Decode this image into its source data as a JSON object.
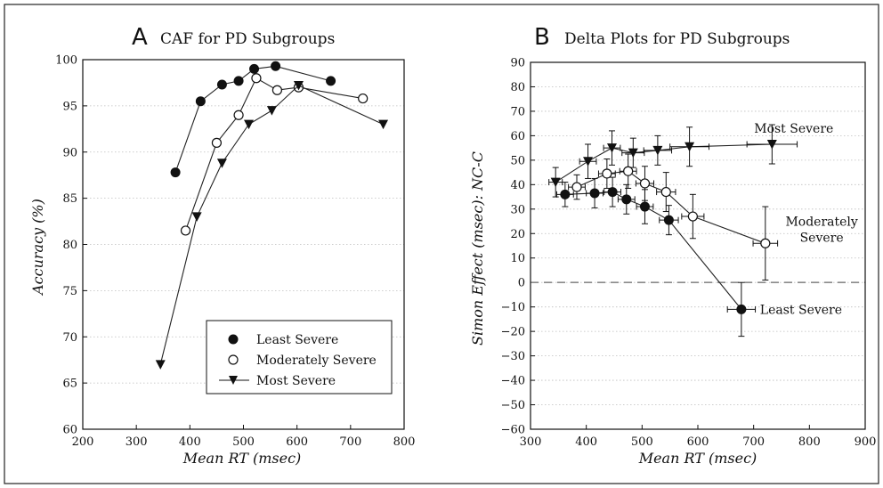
{
  "chart_data": [
    {
      "type": "line",
      "panel_letter": "A",
      "title": "CAF for PD Subgroups",
      "xlabel": "Mean RT (msec)",
      "ylabel": "Accuracy (%)",
      "xlim": [
        200,
        800
      ],
      "ylim": [
        60,
        100
      ],
      "xticks": [
        "200",
        "300",
        "400",
        "500",
        "600",
        "700",
        "800"
      ],
      "yticks": [
        "60",
        "65",
        "70",
        "75",
        "80",
        "85",
        "90",
        "95",
        "100"
      ],
      "grid": "horizontal dotted",
      "legend_placement": "bottom-right",
      "series": [
        {
          "name": "Least Severe",
          "marker": "filled-circle",
          "x": [
            373,
            420,
            460,
            491,
            520,
            560,
            663
          ],
          "y": [
            87.8,
            95.5,
            97.3,
            97.7,
            99.0,
            99.3,
            97.7
          ]
        },
        {
          "name": "Moderately Severe",
          "marker": "open-circle",
          "x": [
            392,
            450,
            491,
            524,
            563,
            603,
            723
          ],
          "y": [
            81.5,
            91.0,
            94.0,
            98.0,
            96.7,
            97.0,
            95.8
          ]
        },
        {
          "name": "Most Severe",
          "marker": "filled-triangle-down",
          "x": [
            345,
            413,
            460,
            510,
            553,
            603,
            761
          ],
          "y": [
            67.0,
            83.0,
            88.8,
            93.0,
            94.5,
            97.2,
            93.0
          ]
        }
      ]
    },
    {
      "type": "line",
      "panel_letter": "B",
      "title": "Delta Plots for PD Subgroups",
      "xlabel": "Mean RT (msec)",
      "ylabel": "Simon Effect (msec): NC-C",
      "xlim": [
        300,
        900
      ],
      "ylim": [
        -60,
        90
      ],
      "xticks": [
        "300",
        "400",
        "500",
        "600",
        "700",
        "800",
        "900"
      ],
      "yticks": [
        "90",
        "80",
        "70",
        "60",
        "50",
        "40",
        "30",
        "20",
        "10",
        "0",
        "−10",
        "−20",
        "−30",
        "−40",
        "−50",
        "−60"
      ],
      "grid": "horizontal dotted",
      "reference_line_y": 0,
      "series": [
        {
          "name": "Least Severe",
          "marker": "filled-circle",
          "x": [
            362,
            415,
            447,
            472,
            505,
            548,
            678
          ],
          "y": [
            36,
            36.5,
            37,
            34,
            31,
            25.5,
            -11
          ],
          "yerr": [
            5,
            6,
            6,
            6,
            7,
            6,
            11
          ],
          "xerr": [
            15,
            15,
            15,
            15,
            15,
            17,
            25
          ]
        },
        {
          "name": "Moderately Severe",
          "marker": "open-circle",
          "x": [
            383,
            437,
            475,
            505,
            543,
            591,
            721
          ],
          "y": [
            39,
            44.5,
            45.5,
            40.5,
            37,
            27,
            16
          ],
          "yerr": [
            5,
            6,
            7,
            7,
            8,
            9,
            15
          ],
          "xerr": [
            15,
            15,
            15,
            16,
            17,
            20,
            22
          ]
        },
        {
          "name": "Most Severe",
          "marker": "filled-triangle-down",
          "x": [
            345,
            403,
            446,
            484,
            528,
            585,
            733
          ],
          "y": [
            41,
            49.5,
            55,
            53,
            54,
            55.5,
            56.5
          ],
          "yerr": [
            6,
            7,
            7,
            6,
            6,
            8,
            8
          ],
          "xerr": [
            12,
            15,
            15,
            20,
            25,
            35,
            45
          ]
        }
      ],
      "annotations": [
        {
          "lines": [
            "Most Severe"
          ],
          "anchor_x": 772,
          "anchor_y": 63
        },
        {
          "lines": [
            "Moderately",
            "Severe"
          ],
          "anchor_x": 822,
          "anchor_y": 25
        },
        {
          "lines": [
            "Least Severe"
          ],
          "anchor_x": 785,
          "anchor_y": -11
        }
      ]
    }
  ]
}
